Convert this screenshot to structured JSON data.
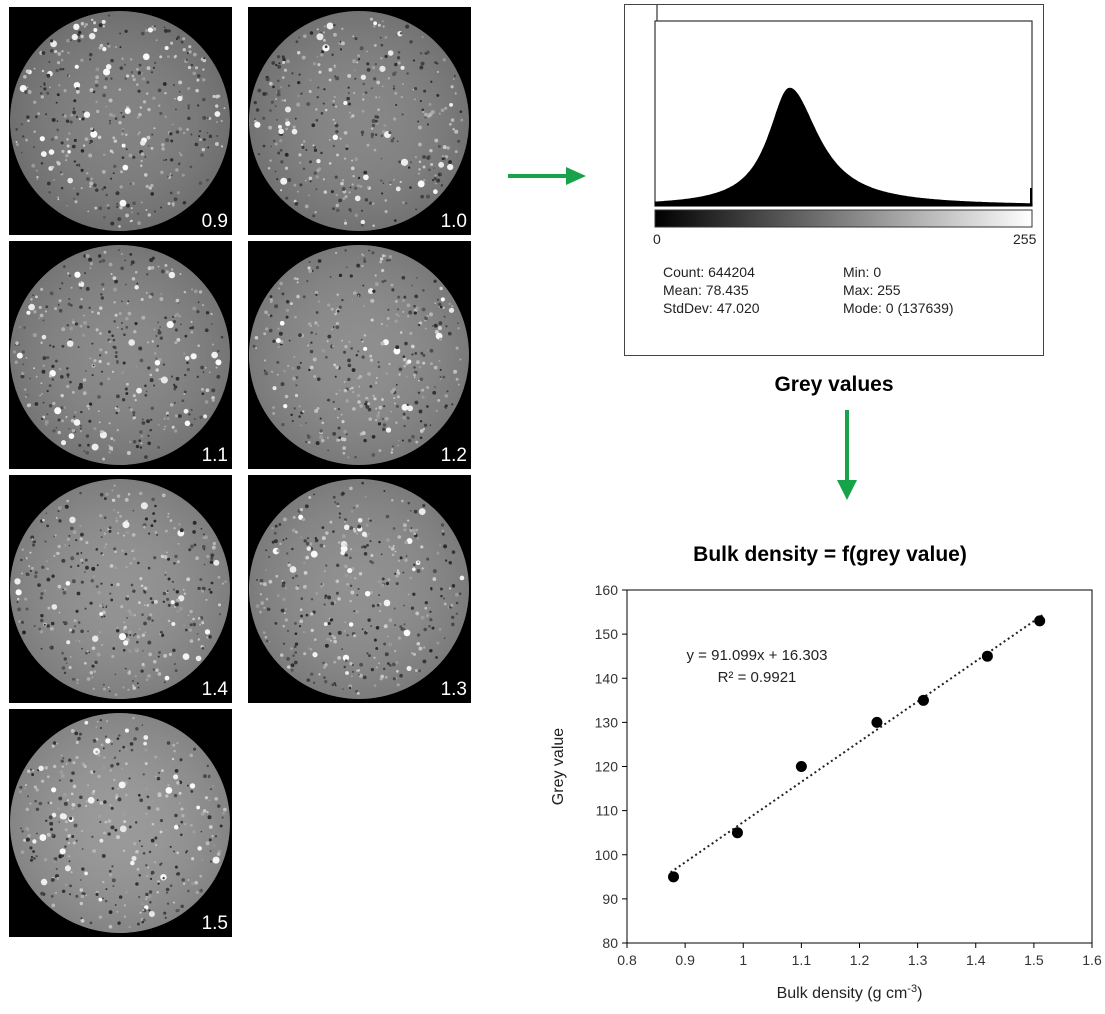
{
  "tiles": [
    {
      "label": "0.9"
    },
    {
      "label": "1.0"
    },
    {
      "label": "1.1"
    },
    {
      "label": "1.2"
    },
    {
      "label": "1.4"
    },
    {
      "label": "1.3"
    },
    {
      "label": "1.5"
    }
  ],
  "histogram": {
    "range_min_label": "0",
    "range_max_label": "255",
    "count": "Count: 644204",
    "mean": "Mean: 78.435",
    "stddev": "StdDev: 47.020",
    "min": "Min: 0",
    "max": "Max: 255",
    "mode": "Mode: 0 (137639)"
  },
  "grey_values_title": "Grey values",
  "arrow_color": "#16a34a",
  "chart_data": {
    "type": "scatter",
    "title": "Bulk density = f(grey value)",
    "xlabel": "Bulk density (g cm",
    "xlabel_sup": "-3",
    "xlabel_close": ")",
    "ylabel": "Grey value",
    "xlim": [
      0.8,
      1.6
    ],
    "ylim": [
      80,
      160
    ],
    "xticks": [
      "0.8",
      "0.9",
      "1",
      "1.1",
      "1.2",
      "1.3",
      "1.4",
      "1.5",
      "1.6"
    ],
    "yticks": [
      "80",
      "90",
      "100",
      "110",
      "120",
      "130",
      "140",
      "150",
      "160"
    ],
    "points": [
      {
        "x": 0.88,
        "y": 95
      },
      {
        "x": 0.99,
        "y": 105
      },
      {
        "x": 1.1,
        "y": 120
      },
      {
        "x": 1.23,
        "y": 130
      },
      {
        "x": 1.31,
        "y": 135
      },
      {
        "x": 1.42,
        "y": 145
      },
      {
        "x": 1.51,
        "y": 153
      }
    ],
    "trendline": {
      "slope": 91.099,
      "intercept": 16.303,
      "style": "dotted"
    },
    "equation": "y = 91.099x + 16.303",
    "r2": "R² = 0.9921"
  }
}
